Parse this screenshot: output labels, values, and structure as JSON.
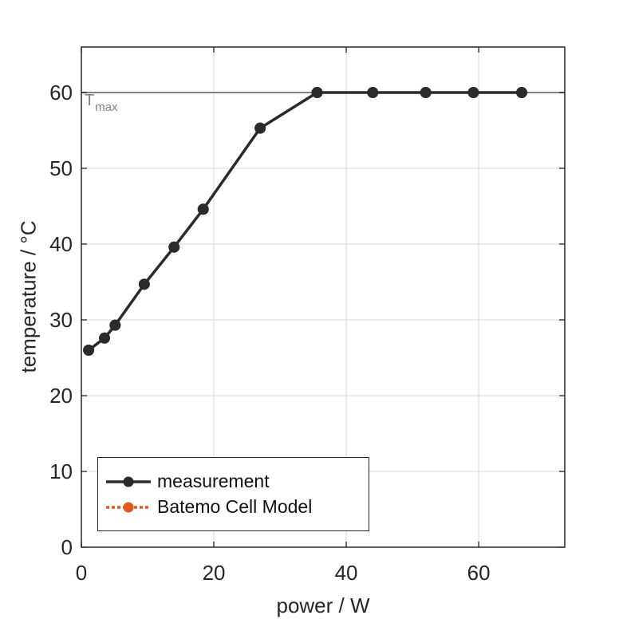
{
  "window": {
    "background": "#ffffff"
  },
  "chart_data": {
    "type": "line",
    "title": "",
    "xlabel": "power / W",
    "ylabel": "temperature / °C",
    "xlim": [
      0,
      73
    ],
    "ylim": [
      0,
      66
    ],
    "x_ticks": [
      0,
      20,
      40,
      60
    ],
    "y_ticks": [
      0,
      10,
      20,
      30,
      40,
      50,
      60
    ],
    "grid": "on",
    "colors": {
      "axis": "#262626",
      "grid": "#e0e0e0",
      "tick_text": "#262626",
      "background": "#ffffff"
    },
    "annotation": {
      "label_base": "T",
      "label_sub": "max",
      "y": 60,
      "color": "#808080"
    },
    "legend": {
      "position": "bottom-left"
    },
    "series": [
      {
        "name": "measurement",
        "color": "#2b2b2b",
        "line_style": "solid",
        "marker": "circle",
        "x": [
          1.1,
          3.5,
          5.1,
          9.5,
          14.0,
          18.4,
          27.0,
          35.6,
          44.0,
          52.0,
          59.2,
          66.5
        ],
        "y": [
          26.0,
          27.6,
          29.3,
          34.7,
          39.6,
          44.6,
          55.3,
          60.0,
          60.0,
          60.0,
          60.0,
          60.0
        ]
      },
      {
        "name": "Batemo Cell Model",
        "color": "#e2581b",
        "line_style": "dotted",
        "marker": "circle",
        "x": [
          1.1,
          3.5,
          5.1,
          9.5,
          14.0,
          18.4,
          27.0,
          35.6,
          44.0,
          52.0,
          59.2,
          66.5
        ],
        "y": [
          26.0,
          27.6,
          29.3,
          34.7,
          39.6,
          44.6,
          55.3,
          60.0,
          60.0,
          60.0,
          60.0,
          60.0
        ]
      }
    ]
  }
}
